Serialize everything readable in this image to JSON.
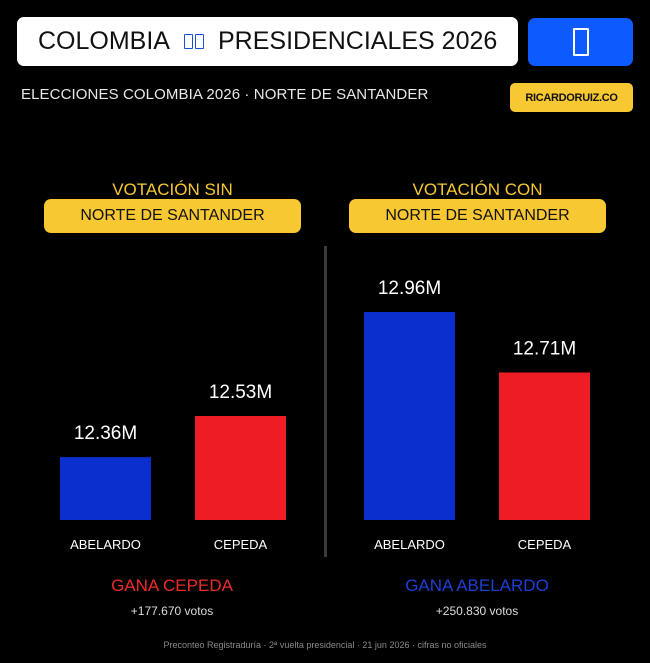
{
  "header": {
    "title_left": "COLOMBIA",
    "title_right": "PRESIDENCIALES 2026",
    "flag_icon": "colombia-flag-icon",
    "button_icon": "flag-icon",
    "subtitle": "ELECCIONES COLOMBIA 2026 · NORTE DE SANTANDER",
    "handle": "RICARDORUIZ.CO"
  },
  "panels": [
    {
      "heading": "VOTACIÓN SIN",
      "pill": "NORTE DE SANTANDER",
      "result": "GANA CEPEDA",
      "margin": "+177.670 votos"
    },
    {
      "heading": "VOTACIÓN CON",
      "pill": "NORTE DE SANTANDER",
      "result": "GANA ABELARDO",
      "margin": "+250.830 votos"
    }
  ],
  "colors": {
    "abelardo": "#0a2fce",
    "cepeda": "#ee1c25",
    "accent": "#f7c832",
    "result_cepeda": "#ee2a2a",
    "result_abelardo": "#1c3fd6"
  },
  "chart_data": [
    {
      "type": "bar",
      "title": "VOTACIÓN SIN NORTE DE SANTANDER",
      "categories": [
        "ABELARDO",
        "CEPEDA"
      ],
      "values": [
        12.36,
        12.53
      ],
      "value_labels": [
        "12.36M",
        "12.53M"
      ],
      "colors": [
        "#0a2fce",
        "#ee1c25"
      ],
      "unit": "M",
      "grid": false
    },
    {
      "type": "bar",
      "title": "VOTACIÓN CON NORTE DE SANTANDER",
      "categories": [
        "ABELARDO",
        "CEPEDA"
      ],
      "values": [
        12.96,
        12.71
      ],
      "value_labels": [
        "12.96M",
        "12.71M"
      ],
      "colors": [
        "#0a2fce",
        "#ee1c25"
      ],
      "unit": "M",
      "grid": false
    }
  ],
  "footer": "Preconteo Registraduría · 2ª vuelta presidencial · 21 jun 2026 · cifras no oficiales"
}
